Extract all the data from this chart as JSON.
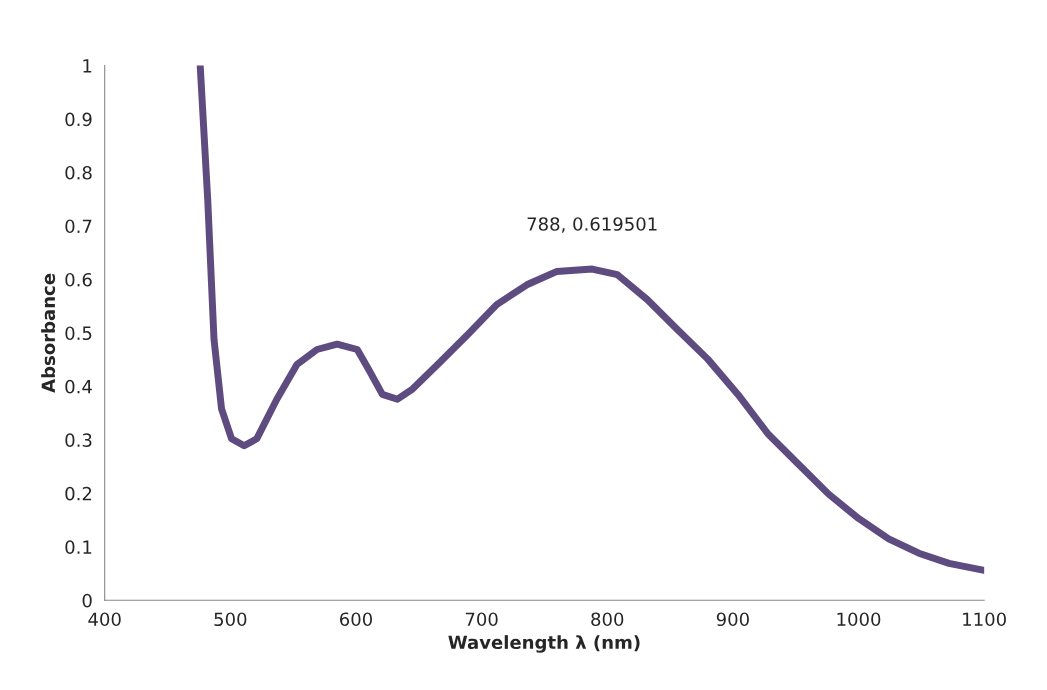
{
  "chart_data": {
    "type": "line",
    "xlabel": "Wavelength λ (nm)",
    "ylabel": "Absorbance",
    "xlim": [
      400,
      1100
    ],
    "xticks": [
      400,
      500,
      600,
      700,
      800,
      900,
      1000,
      1100
    ],
    "ylim": [
      0,
      1
    ],
    "yticks": [
      0,
      0.1,
      0.2,
      0.3,
      0.4,
      0.5,
      0.6,
      0.7,
      0.8,
      0.9,
      1
    ],
    "grid": false,
    "marker": "none",
    "line_style": "solid",
    "annotations": [
      {
        "text": "788, 0.619501",
        "x": 788,
        "y": 0.619501
      }
    ],
    "series": [
      {
        "color": "#5e4b80",
        "x": [
          476,
          482,
          487,
          493,
          501,
          511,
          521,
          537,
          553,
          569,
          585,
          601,
          610,
          621,
          633,
          645,
          665,
          689,
          712,
          736,
          760,
          788,
          808,
          832,
          856,
          880,
          904,
          928,
          952,
          976,
          1000,
          1024,
          1048,
          1072,
          1100
        ],
        "values": [
          1.0,
          0.749,
          0.488,
          0.358,
          0.302,
          0.289,
          0.302,
          0.376,
          0.441,
          0.469,
          0.479,
          0.469,
          0.432,
          0.385,
          0.376,
          0.395,
          0.441,
          0.497,
          0.553,
          0.59,
          0.615,
          0.619501,
          0.609,
          0.562,
          0.506,
          0.451,
          0.385,
          0.311,
          0.255,
          0.199,
          0.153,
          0.115,
          0.088,
          0.069,
          0.056
        ]
      }
    ]
  }
}
